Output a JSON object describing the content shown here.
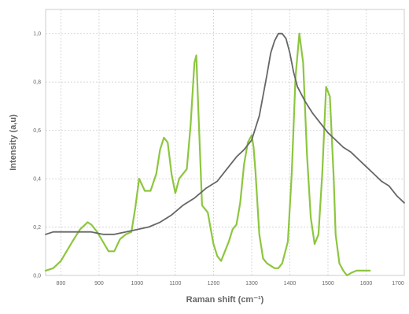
{
  "chart_data": {
    "type": "line",
    "title": "",
    "xlabel": "Raman shift (cm⁻¹)",
    "ylabel": "Intensity (a,u)",
    "xlim": [
      760,
      1700
    ],
    "ylim": [
      0,
      1.1
    ],
    "grid": true,
    "legend": "none",
    "x_ticks": [
      800,
      900,
      1000,
      1100,
      1200,
      1300,
      1400,
      1500,
      1600,
      1700
    ],
    "x_tick_labels": [
      "800",
      "900",
      "1000",
      "1100",
      "1200",
      "1300",
      "1400",
      "1500",
      "1600",
      "1700"
    ],
    "y_ticks": [
      0,
      0.2,
      0.4,
      0.6,
      0.8,
      1.0
    ],
    "y_tick_labels": [
      "0,0",
      "0,2",
      "0,4",
      "0,6",
      "0,8",
      "1,0"
    ],
    "series": [
      {
        "color": "#8dc63f",
        "x": [
          760,
          780,
          800,
          815,
          830,
          850,
          870,
          880,
          895,
          910,
          925,
          940,
          955,
          970,
          985,
          995,
          1005,
          1020,
          1035,
          1050,
          1060,
          1070,
          1080,
          1090,
          1100,
          1110,
          1120,
          1130,
          1140,
          1150,
          1155,
          1160,
          1170,
          1185,
          1200,
          1210,
          1220,
          1230,
          1240,
          1250,
          1260,
          1270,
          1280,
          1290,
          1300,
          1305,
          1310,
          1320,
          1330,
          1340,
          1350,
          1360,
          1370,
          1380,
          1395,
          1405,
          1415,
          1425,
          1435,
          1445,
          1455,
          1465,
          1475,
          1485,
          1495,
          1505,
          1515,
          1520,
          1530,
          1540,
          1550,
          1560,
          1575,
          1590,
          1610
        ],
        "y": [
          0.02,
          0.03,
          0.06,
          0.1,
          0.14,
          0.19,
          0.22,
          0.21,
          0.18,
          0.14,
          0.1,
          0.1,
          0.15,
          0.17,
          0.18,
          0.28,
          0.4,
          0.35,
          0.35,
          0.42,
          0.52,
          0.57,
          0.55,
          0.42,
          0.34,
          0.4,
          0.42,
          0.44,
          0.62,
          0.88,
          0.91,
          0.7,
          0.29,
          0.26,
          0.13,
          0.08,
          0.06,
          0.1,
          0.14,
          0.19,
          0.21,
          0.3,
          0.46,
          0.55,
          0.58,
          0.53,
          0.43,
          0.17,
          0.07,
          0.05,
          0.04,
          0.03,
          0.03,
          0.05,
          0.14,
          0.42,
          0.82,
          1.0,
          0.88,
          0.5,
          0.24,
          0.13,
          0.17,
          0.42,
          0.78,
          0.74,
          0.4,
          0.17,
          0.05,
          0.02,
          0.0,
          0.01,
          0.02,
          0.02,
          0.02
        ]
      },
      {
        "color": "#666666",
        "x": [
          760,
          780,
          800,
          820,
          850,
          880,
          910,
          940,
          970,
          1000,
          1030,
          1060,
          1090,
          1120,
          1150,
          1180,
          1210,
          1240,
          1260,
          1280,
          1300,
          1320,
          1340,
          1350,
          1360,
          1370,
          1380,
          1390,
          1400,
          1410,
          1420,
          1440,
          1460,
          1480,
          1500,
          1520,
          1540,
          1560,
          1580,
          1600,
          1620,
          1640,
          1660,
          1680,
          1700
        ],
        "y": [
          0.17,
          0.18,
          0.18,
          0.18,
          0.18,
          0.18,
          0.17,
          0.17,
          0.18,
          0.19,
          0.2,
          0.22,
          0.25,
          0.29,
          0.32,
          0.36,
          0.39,
          0.45,
          0.49,
          0.52,
          0.56,
          0.66,
          0.83,
          0.92,
          0.97,
          1.0,
          1.0,
          0.98,
          0.92,
          0.84,
          0.78,
          0.72,
          0.67,
          0.63,
          0.59,
          0.56,
          0.53,
          0.51,
          0.48,
          0.45,
          0.42,
          0.39,
          0.37,
          0.33,
          0.3
        ]
      }
    ]
  }
}
